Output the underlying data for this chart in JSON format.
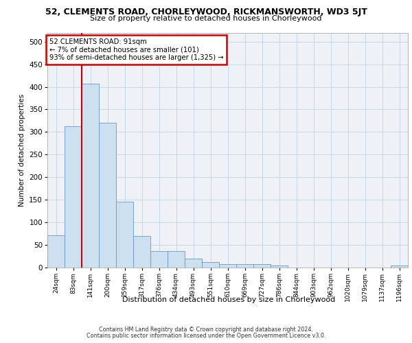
{
  "title_line1": "52, CLEMENTS ROAD, CHORLEYWOOD, RICKMANSWORTH, WD3 5JT",
  "title_line2": "Size of property relative to detached houses in Chorleywood",
  "xlabel": "Distribution of detached houses by size in Chorleywood",
  "ylabel": "Number of detached properties",
  "categories": [
    "24sqm",
    "83sqm",
    "141sqm",
    "200sqm",
    "259sqm",
    "317sqm",
    "376sqm",
    "434sqm",
    "493sqm",
    "551sqm",
    "610sqm",
    "669sqm",
    "727sqm",
    "786sqm",
    "844sqm",
    "903sqm",
    "962sqm",
    "1020sqm",
    "1079sqm",
    "1137sqm",
    "1196sqm"
  ],
  "bar_heights": [
    72,
    313,
    407,
    320,
    146,
    70,
    37,
    36,
    20,
    12,
    7,
    7,
    8,
    5,
    0,
    0,
    0,
    0,
    0,
    0,
    5
  ],
  "bar_color": "#cce0f0",
  "bar_edge_color": "#6699cc",
  "annotation_text": "52 CLEMENTS ROAD: 91sqm\n← 7% of detached houses are smaller (101)\n93% of semi-detached houses are larger (1,325) →",
  "annotation_box_color": "#ffffff",
  "annotation_box_edge_color": "#cc0000",
  "ylim": [
    0,
    520
  ],
  "yticks": [
    0,
    50,
    100,
    150,
    200,
    250,
    300,
    350,
    400,
    450,
    500
  ],
  "vline_color": "#cc0000",
  "vline_x_index": 1,
  "footer_line1": "Contains HM Land Registry data © Crown copyright and database right 2024.",
  "footer_line2": "Contains public sector information licensed under the Open Government Licence v3.0.",
  "grid_color": "#c8d8e8",
  "background_color": "#eef2f7"
}
